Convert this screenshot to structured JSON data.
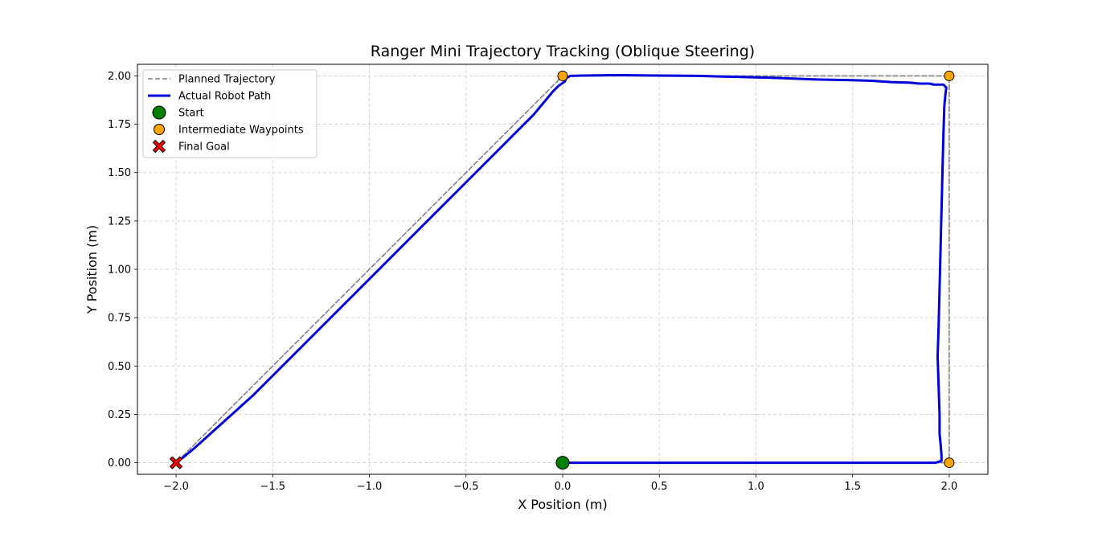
{
  "chart_data": {
    "type": "line",
    "title": "Ranger Mini Trajectory Tracking (Oblique Steering)",
    "xlabel": "X Position (m)",
    "ylabel": "Y Position (m)",
    "xlim": [
      -2.2,
      2.2
    ],
    "ylim": [
      -0.06,
      2.06
    ],
    "xticks": [
      -2.0,
      -1.5,
      -1.0,
      -0.5,
      0.0,
      0.5,
      1.0,
      1.5,
      2.0
    ],
    "xtick_labels": [
      "−2.0",
      "−1.5",
      "−1.0",
      "−0.5",
      "0.0",
      "0.5",
      "1.0",
      "1.5",
      "2.0"
    ],
    "yticks": [
      0.0,
      0.25,
      0.5,
      0.75,
      1.0,
      1.25,
      1.5,
      1.75,
      2.0
    ],
    "ytick_labels": [
      "0.00",
      "0.25",
      "0.50",
      "0.75",
      "1.00",
      "1.25",
      "1.50",
      "1.75",
      "2.00"
    ],
    "grid": true,
    "legend_position": "top-left",
    "series": [
      {
        "name": "Planned Trajectory",
        "style": "dashed",
        "color": "#808080",
        "points": [
          [
            0,
            0
          ],
          [
            2,
            0
          ],
          [
            2,
            2
          ],
          [
            0,
            2
          ],
          [
            -2,
            0
          ]
        ]
      },
      {
        "name": "Actual Robot Path",
        "style": "solid",
        "color": "#0000dd",
        "points": [
          [
            0,
            0
          ],
          [
            0.5,
            0.0
          ],
          [
            1.0,
            0.0
          ],
          [
            1.5,
            0.0
          ],
          [
            1.8,
            0.0
          ],
          [
            1.93,
            0.0
          ],
          [
            1.96,
            0.01
          ],
          [
            1.96,
            0.04
          ],
          [
            1.955,
            0.1
          ],
          [
            1.95,
            0.15
          ],
          [
            1.95,
            0.25
          ],
          [
            1.945,
            0.4
          ],
          [
            1.94,
            0.55
          ],
          [
            1.945,
            0.7
          ],
          [
            1.95,
            0.9
          ],
          [
            1.955,
            1.1
          ],
          [
            1.96,
            1.3
          ],
          [
            1.965,
            1.5
          ],
          [
            1.97,
            1.7
          ],
          [
            1.975,
            1.85
          ],
          [
            1.98,
            1.9
          ],
          [
            1.985,
            1.94
          ],
          [
            1.97,
            1.955
          ],
          [
            1.95,
            1.955
          ],
          [
            1.92,
            1.955
          ],
          [
            1.9,
            1.96
          ],
          [
            1.85,
            1.96
          ],
          [
            1.8,
            1.965
          ],
          [
            1.7,
            1.968
          ],
          [
            1.6,
            1.975
          ],
          [
            1.5,
            1.978
          ],
          [
            1.3,
            1.982
          ],
          [
            1.1,
            1.99
          ],
          [
            0.9,
            1.995
          ],
          [
            0.7,
            2.0
          ],
          [
            0.5,
            2.002
          ],
          [
            0.3,
            2.004
          ],
          [
            0.1,
            2.002
          ],
          [
            0.04,
            2.0
          ],
          [
            0.02,
            1.99
          ],
          [
            0.01,
            1.97
          ],
          [
            -0.02,
            1.95
          ],
          [
            -0.05,
            1.92
          ],
          [
            -0.1,
            1.86
          ],
          [
            -0.15,
            1.8
          ],
          [
            -0.2,
            1.75
          ],
          [
            -0.3,
            1.65
          ],
          [
            -0.5,
            1.45
          ],
          [
            -0.7,
            1.25
          ],
          [
            -1.0,
            0.95
          ],
          [
            -1.3,
            0.65
          ],
          [
            -1.6,
            0.35
          ],
          [
            -1.8,
            0.17
          ],
          [
            -1.9,
            0.08
          ],
          [
            -1.96,
            0.03
          ],
          [
            -2.0,
            0.0
          ]
        ]
      }
    ],
    "markers": [
      {
        "name": "Start",
        "shape": "circle",
        "color": "#008000",
        "points": [
          [
            0,
            0
          ]
        ]
      },
      {
        "name": "Intermediate Waypoints",
        "shape": "circle",
        "color": "#ffa500",
        "points": [
          [
            2,
            0
          ],
          [
            2,
            2
          ],
          [
            0,
            2
          ]
        ]
      },
      {
        "name": "Final Goal",
        "shape": "x",
        "color": "#ff0000",
        "points": [
          [
            -2,
            0
          ]
        ]
      }
    ]
  }
}
